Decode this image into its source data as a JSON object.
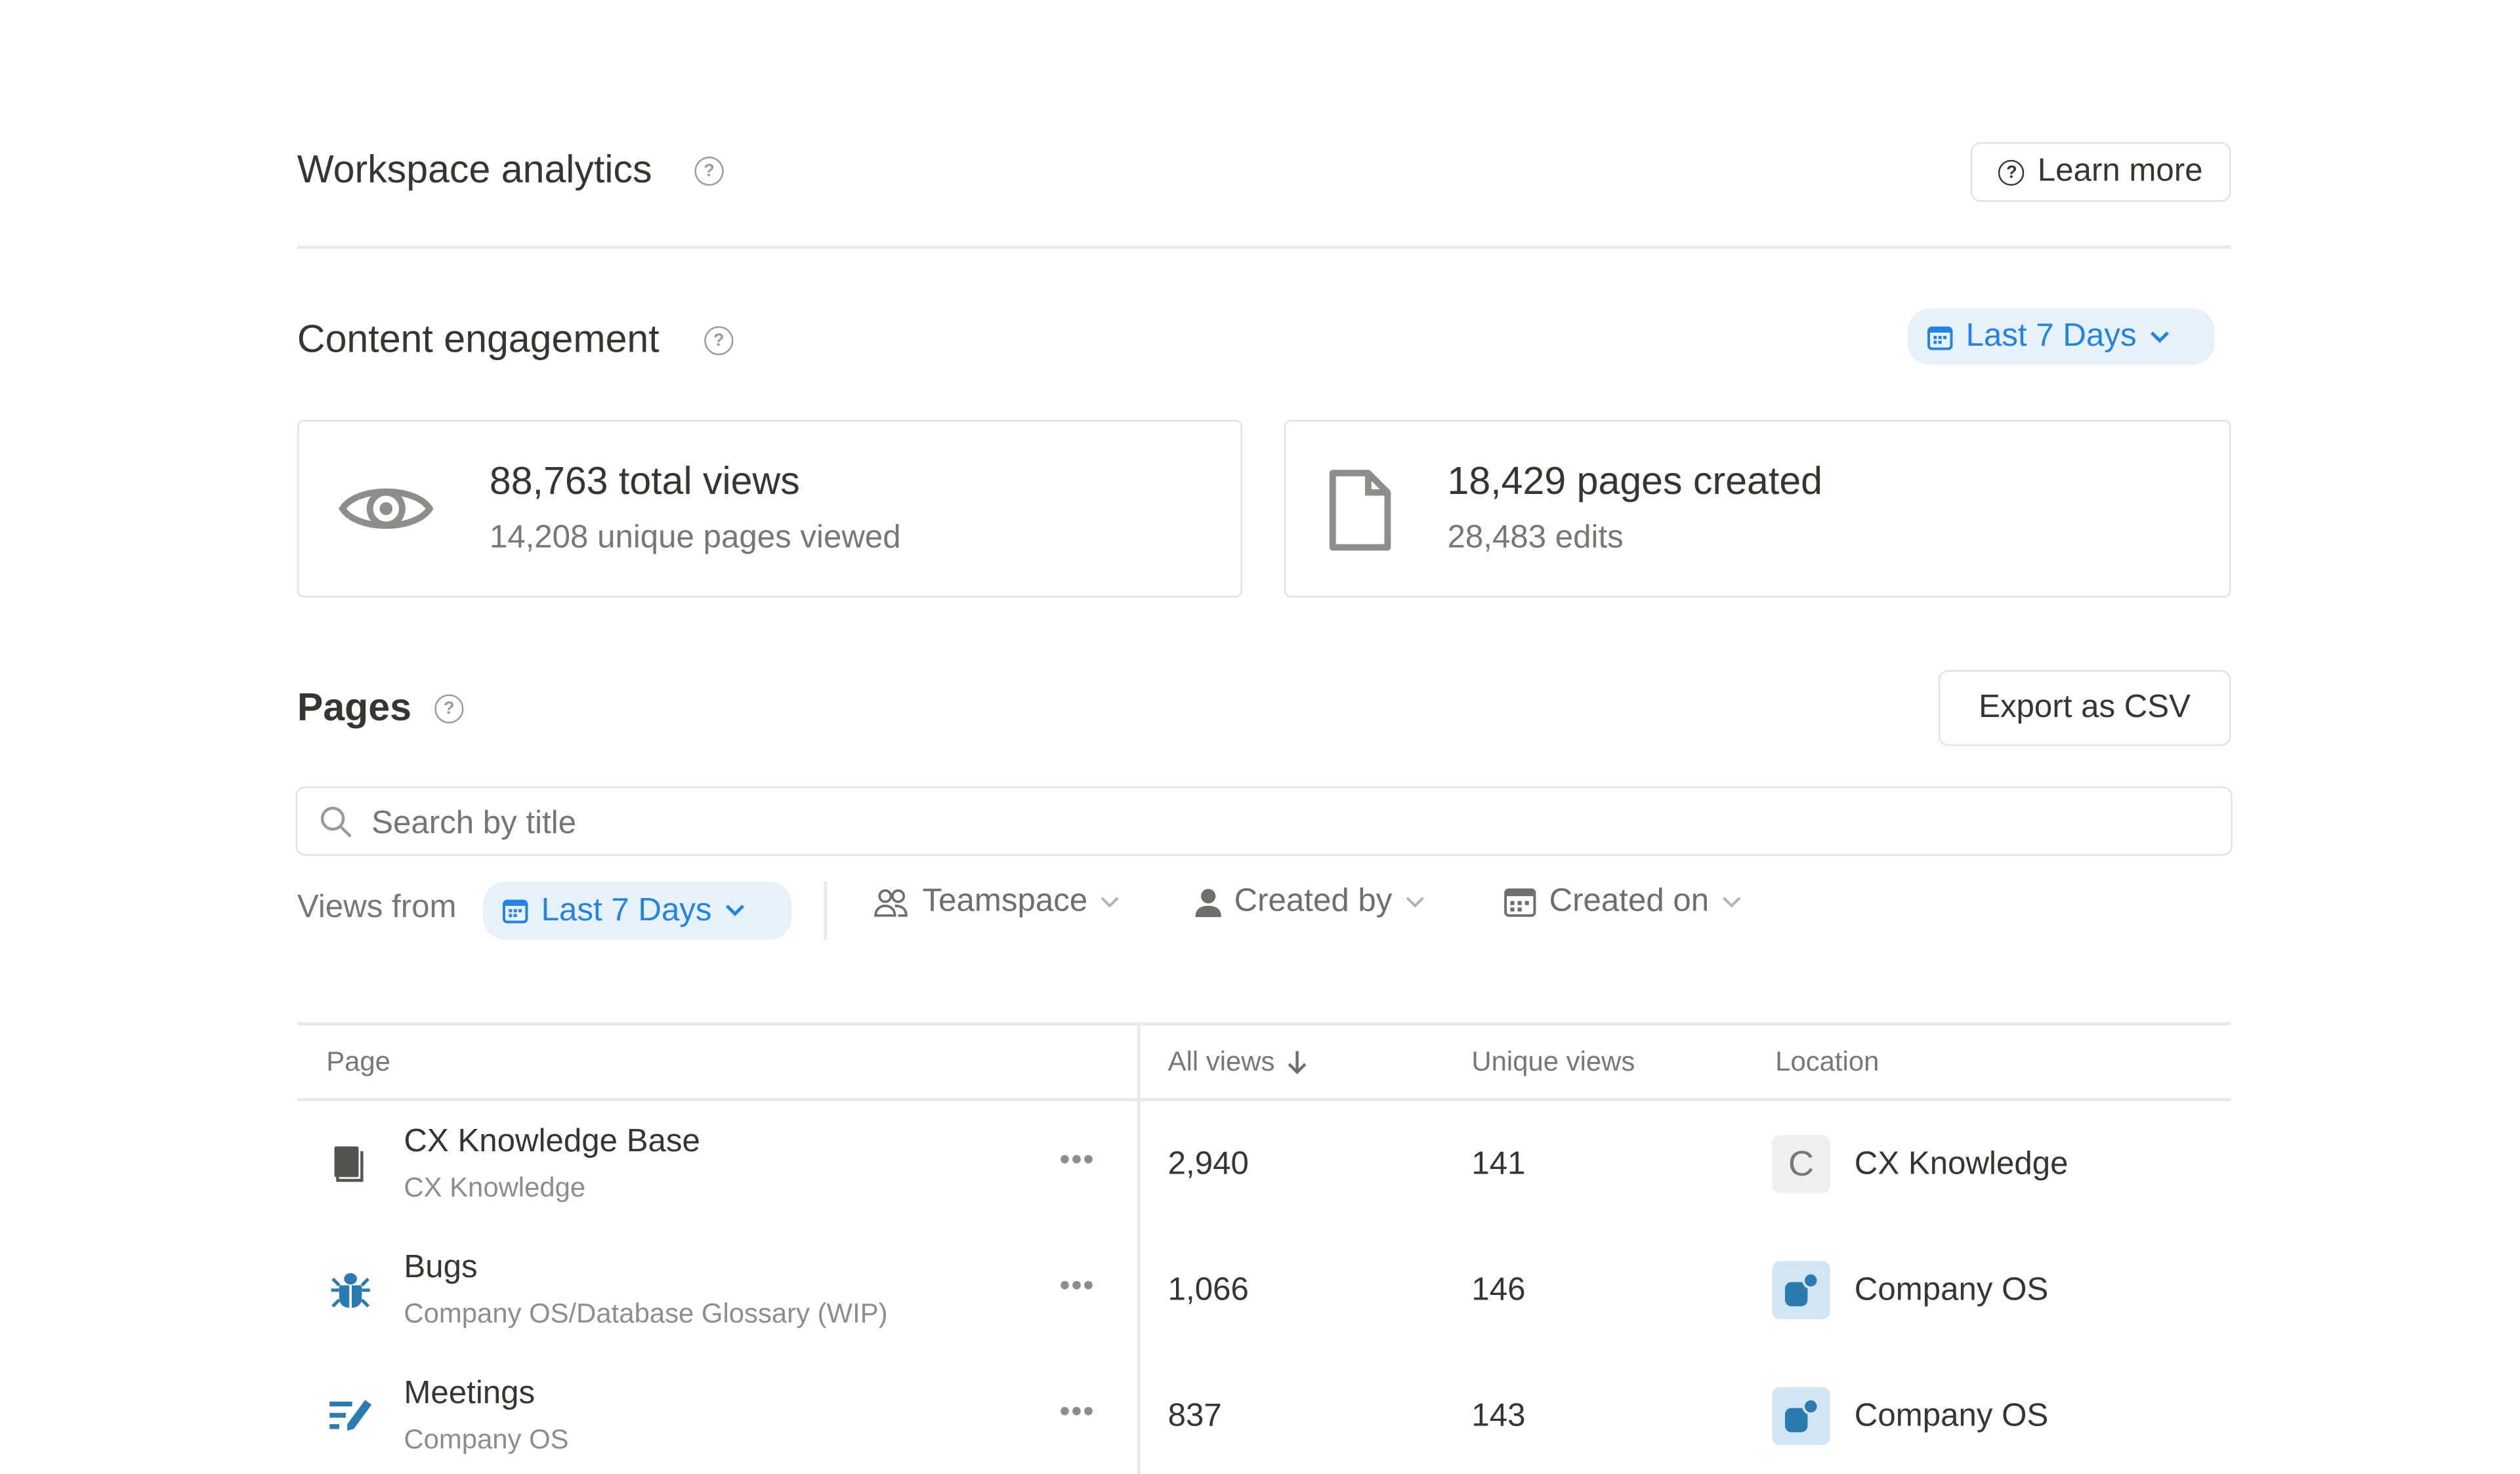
{
  "header": {
    "title": "Workspace analytics",
    "learn_more": "Learn more"
  },
  "engagement": {
    "title": "Content engagement",
    "range": "Last 7 Days",
    "views_card": {
      "primary": "88,763 total views",
      "secondary": "14,208 unique pages viewed",
      "icon": "eye-icon"
    },
    "pages_card": {
      "primary": "18,429 pages created",
      "secondary": "28,483 edits",
      "icon": "document-icon"
    }
  },
  "pages": {
    "title": "Pages",
    "export": "Export as CSV",
    "search_placeholder": "Search by title",
    "filters": {
      "views_from": "Views from",
      "range": "Last 7 Days",
      "teamspace": "Teamspace",
      "created_by": "Created by",
      "created_on": "Created on"
    },
    "columns": [
      "Page",
      "All views",
      "Unique views",
      "Location"
    ],
    "rows": [
      {
        "title": "CX Knowledge Base",
        "path": "CX Knowledge",
        "all_views": "2,940",
        "unique_views": "141",
        "location": "CX Knowledge",
        "location_letter": "C",
        "icon": "book-icon"
      },
      {
        "title": "Bugs",
        "path": "Company OS/Database Glossary (WIP)",
        "all_views": "1,066",
        "unique_views": "146",
        "location": "Company OS",
        "icon": "bug-icon"
      },
      {
        "title": "Meetings",
        "path": "Company OS",
        "all_views": "837",
        "unique_views": "143",
        "location": "Company OS",
        "icon": "edit-list-icon"
      }
    ]
  },
  "colors": {
    "accent": "#2383e2",
    "accent_bg": "#e7f1fb",
    "teamspace_blue": "#2b7bb0"
  }
}
